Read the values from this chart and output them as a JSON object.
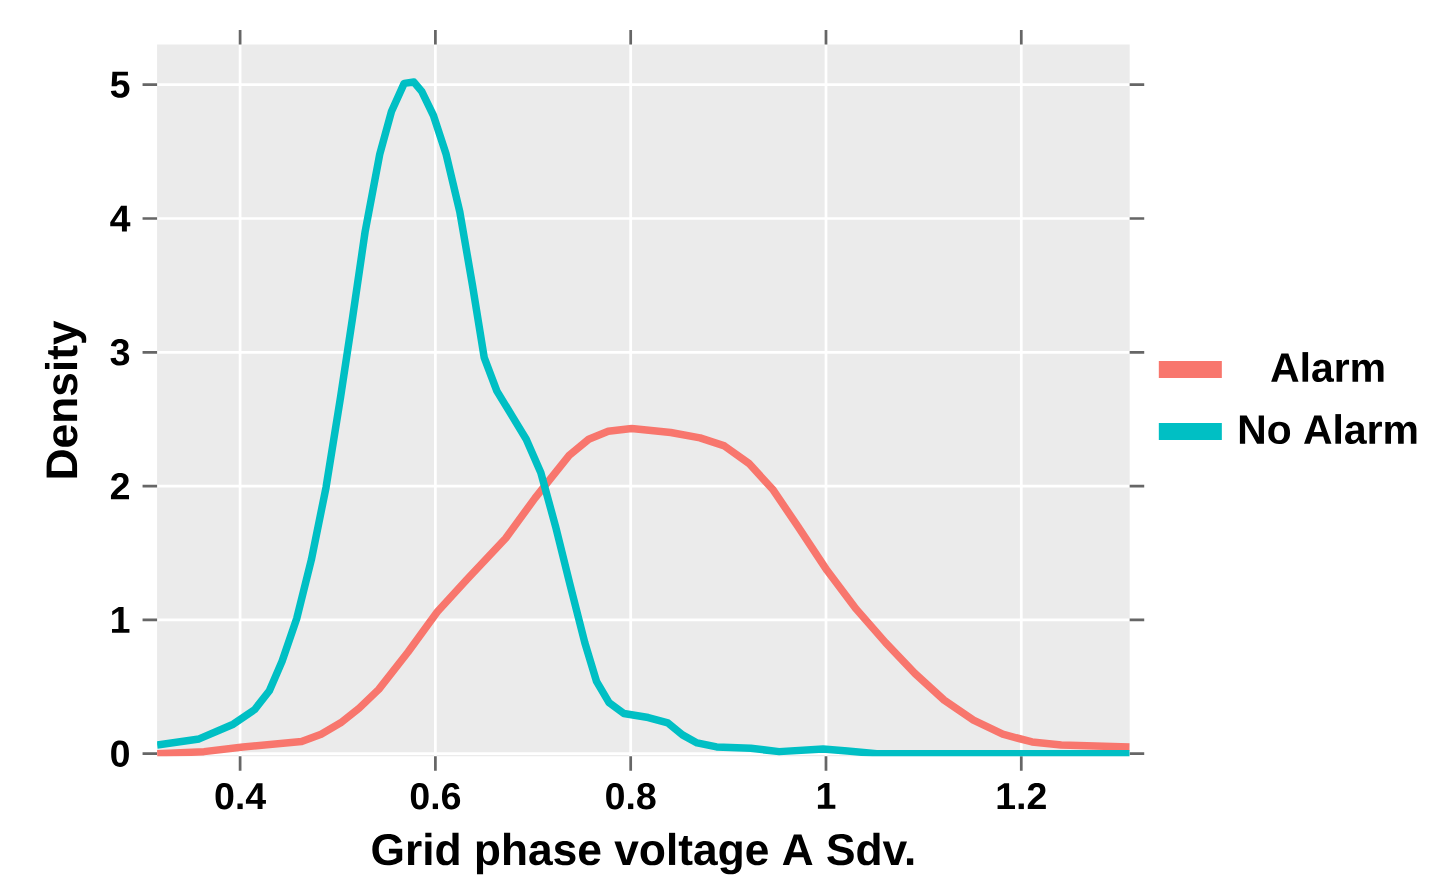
{
  "chart_data": {
    "type": "line",
    "xlabel": "Grid phase voltage A Sdv.",
    "ylabel": "Density",
    "xlim": [
      0.315,
      1.311
    ],
    "ylim": [
      -0.02,
      5.3
    ],
    "xticks": [
      0.4,
      0.6,
      0.8,
      1,
      1.2
    ],
    "yticks": [
      0,
      1,
      2,
      3,
      4,
      5
    ],
    "grid": true,
    "legend": "right",
    "line_style": "solid",
    "marker": "none",
    "series": [
      {
        "name": "Alarm",
        "color": "#f8766d",
        "x": [
          0.315,
          0.363,
          0.403,
          0.463,
          0.483,
          0.503,
          0.522,
          0.542,
          0.572,
          0.602,
          0.632,
          0.672,
          0.702,
          0.737,
          0.757,
          0.777,
          0.801,
          0.841,
          0.871,
          0.896,
          0.921,
          0.946,
          0.971,
          1.001,
          1.031,
          1.061,
          1.091,
          1.121,
          1.151,
          1.181,
          1.211,
          1.241,
          1.311
        ],
        "values": [
          0,
          0.015,
          0.05,
          0.09,
          0.145,
          0.23,
          0.34,
          0.48,
          0.76,
          1.06,
          1.3,
          1.61,
          1.91,
          2.23,
          2.35,
          2.41,
          2.43,
          2.4,
          2.36,
          2.3,
          2.17,
          1.97,
          1.7,
          1.37,
          1.08,
          0.83,
          0.6,
          0.4,
          0.25,
          0.145,
          0.087,
          0.065,
          0.05
        ]
      },
      {
        "name": "No Alarm",
        "color": "#00bfc4",
        "x": [
          0.315,
          0.358,
          0.393,
          0.415,
          0.43,
          0.443,
          0.458,
          0.473,
          0.488,
          0.503,
          0.515,
          0.528,
          0.543,
          0.555,
          0.568,
          0.578,
          0.586,
          0.598,
          0.611,
          0.625,
          0.638,
          0.65,
          0.663,
          0.678,
          0.693,
          0.708,
          0.723,
          0.738,
          0.753,
          0.765,
          0.778,
          0.793,
          0.818,
          0.838,
          0.853,
          0.868,
          0.888,
          0.923,
          0.952,
          0.997,
          1.022,
          1.052,
          1.311
        ],
        "values": [
          0.065,
          0.11,
          0.22,
          0.33,
          0.47,
          0.69,
          1.01,
          1.45,
          1.99,
          2.67,
          3.25,
          3.9,
          4.48,
          4.8,
          5.01,
          5.02,
          4.95,
          4.77,
          4.48,
          4.05,
          3.5,
          2.96,
          2.71,
          2.53,
          2.35,
          2.1,
          1.7,
          1.26,
          0.83,
          0.54,
          0.38,
          0.3,
          0.27,
          0.23,
          0.14,
          0.08,
          0.05,
          0.04,
          0.015,
          0.035,
          0.02,
          0,
          0
        ]
      }
    ]
  }
}
